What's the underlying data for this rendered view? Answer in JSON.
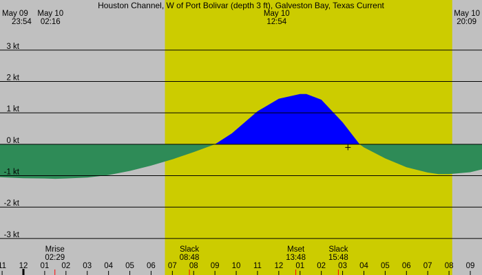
{
  "chart_data": {
    "type": "area",
    "title": "Houston Channel, W of Port Bolivar (depth 3 ft), Galveston Bay, Texas Current",
    "ylabel": "",
    "xlabel": "",
    "ylim": [
      -3.9,
      4.2
    ],
    "y_ticks": [
      {
        "value": 3,
        "label": "3 kt"
      },
      {
        "value": 2,
        "label": "2 kt"
      },
      {
        "value": 1,
        "label": "1 kt"
      },
      {
        "value": 0,
        "label": "0 kt"
      },
      {
        "value": -1,
        "label": "-1 kt"
      },
      {
        "value": -2,
        "label": "-2 kt"
      },
      {
        "value": -3,
        "label": "-3 kt"
      }
    ],
    "x_range_hours": [
      -13.1,
      9.55
    ],
    "hour_labels": [
      "11",
      "12",
      "01",
      "02",
      "03",
      "04",
      "05",
      "06",
      "07",
      "08",
      "09",
      "10",
      "11",
      "12",
      "01",
      "02",
      "03",
      "04",
      "05",
      "06",
      "07",
      "08",
      "09"
    ],
    "hour_label_start": -13,
    "daylight": {
      "start": -5.35,
      "end": 8.15
    },
    "series": [
      {
        "x": [
          -13.1,
          -12,
          -11,
          -10.5,
          -10,
          -9,
          -8,
          -7,
          -6,
          -5,
          -4,
          -3,
          -2.2,
          -1,
          0,
          1,
          1.3,
          2,
          3,
          3.8,
          4,
          5,
          6,
          7,
          7.5,
          8,
          9,
          9.55
        ],
        "values": [
          -1.05,
          -1.08,
          -1.09,
          -1.1,
          -1.09,
          -1.06,
          -0.98,
          -0.85,
          -0.68,
          -0.48,
          -0.25,
          0.0,
          0.35,
          1.05,
          1.45,
          1.6,
          1.6,
          1.42,
          0.7,
          0.0,
          -0.1,
          -0.45,
          -0.73,
          -0.9,
          -0.95,
          -0.95,
          -0.89,
          -0.8
        ]
      }
    ],
    "colors": {
      "background": "#c0c0c0",
      "daylight": "#cccc00",
      "flood": "#0000ff",
      "ebb": "#2e8b57",
      "grid": "#000000",
      "tick_marker": "#ff0000"
    },
    "top_events": [
      {
        "date": "May 09",
        "time": "23:54",
        "x": -13.1,
        "anchor": "start"
      },
      {
        "date": "May 10",
        "time": "02:16",
        "x": -10.73,
        "anchor": "middle"
      },
      {
        "date": "May 10",
        "time": "12:54",
        "x": -0.1,
        "anchor": "middle"
      },
      {
        "date": "May 10",
        "time": "20:09",
        "x": 9.55,
        "anchor": "end"
      }
    ],
    "bottom_events": [
      {
        "label": "Mrise",
        "time": "02:29",
        "x": -10.52
      },
      {
        "label": "Slack",
        "time": "08:48",
        "x": -4.2
      },
      {
        "label": "Mset",
        "time": "13:48",
        "x": 0.8
      },
      {
        "label": "Slack",
        "time": "15:48",
        "x": 2.8
      }
    ],
    "red_ticks_x": [
      -10.52,
      -4.2,
      0.8,
      2.8
    ],
    "marker": {
      "x": 3.25,
      "y": -0.1
    }
  }
}
